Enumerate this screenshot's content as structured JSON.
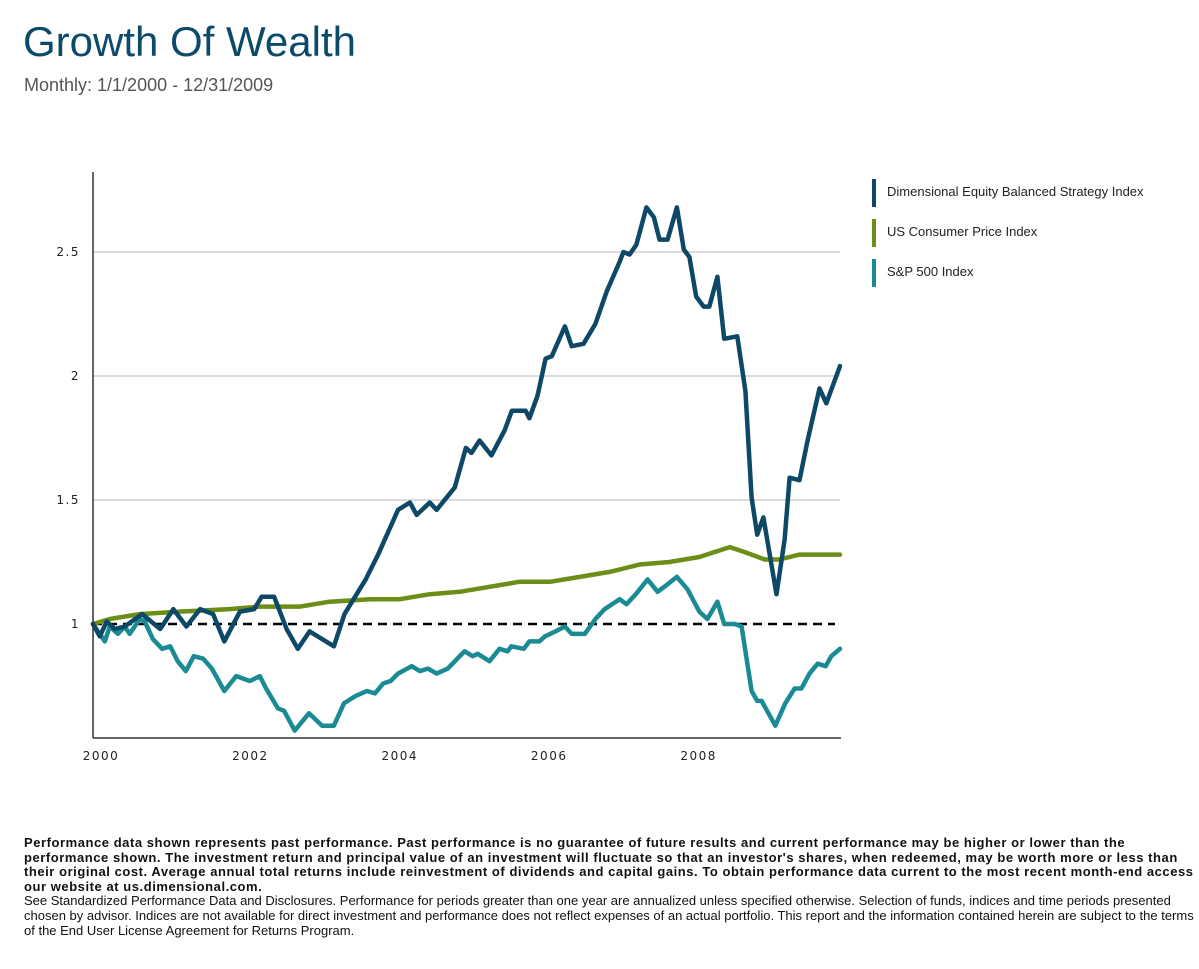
{
  "header": {
    "title": "Growth Of Wealth",
    "subtitle": "Monthly: 1/1/2000 - 12/31/2009"
  },
  "legend": [
    {
      "label": "Dimensional Equity Balanced Strategy Index",
      "color": "#0d4866"
    },
    {
      "label": "US Consumer Price Index",
      "color": "#6b8e17"
    },
    {
      "label": "S&P 500 Index",
      "color": "#1a8a94"
    }
  ],
  "chart_data": {
    "type": "line",
    "title": "Growth Of Wealth",
    "subtitle": "Monthly: 1/1/2000 - 12/31/2009",
    "xlabel": "",
    "ylabel": "",
    "x_unit": "months since Jan 2000",
    "xlim": [
      0,
      120
    ],
    "ylim": [
      0.54,
      2.8
    ],
    "x_ticks": [
      {
        "value": 0,
        "label": "2000"
      },
      {
        "value": 24,
        "label": "2002"
      },
      {
        "value": 48,
        "label": "2004"
      },
      {
        "value": 72,
        "label": "2006"
      },
      {
        "value": 96,
        "label": "2008"
      }
    ],
    "y_ticks": [
      {
        "value": 1,
        "label": "1"
      },
      {
        "value": 1.5,
        "label": "1.5"
      },
      {
        "value": 2,
        "label": "2"
      },
      {
        "value": 2.5,
        "label": "2.5"
      }
    ],
    "grid": "horizontal",
    "reference_line": {
      "value": 1,
      "style": "dashed",
      "color": "#000000"
    },
    "legend_position": "right",
    "series": [
      {
        "name": "Dimensional Equity Balanced Strategy Index",
        "color": "#0d4866",
        "points": [
          [
            0,
            1.0
          ],
          [
            1.1,
            0.95
          ],
          [
            2.2,
            1.01
          ],
          [
            3.5,
            0.98
          ],
          [
            5.1,
            0.99
          ],
          [
            7.9,
            1.04
          ],
          [
            10.8,
            0.98
          ],
          [
            12.9,
            1.06
          ],
          [
            15,
            0.99
          ],
          [
            17.2,
            1.06
          ],
          [
            19.3,
            1.04
          ],
          [
            21.1,
            0.93
          ],
          [
            23.6,
            1.05
          ],
          [
            25.9,
            1.06
          ],
          [
            27.1,
            1.11
          ],
          [
            29.1,
            1.11
          ],
          [
            31.1,
            0.98
          ],
          [
            32.9,
            0.9
          ],
          [
            34.8,
            0.97
          ],
          [
            38.7,
            0.91
          ],
          [
            40.4,
            1.04
          ],
          [
            43.8,
            1.18
          ],
          [
            45.8,
            1.28
          ],
          [
            49,
            1.46
          ],
          [
            50.9,
            1.49
          ],
          [
            52,
            1.44
          ],
          [
            54.1,
            1.49
          ],
          [
            55.2,
            1.46
          ],
          [
            58.1,
            1.55
          ],
          [
            59.9,
            1.71
          ],
          [
            60.8,
            1.69
          ],
          [
            62.1,
            1.74
          ],
          [
            64,
            1.68
          ],
          [
            66.1,
            1.78
          ],
          [
            67.3,
            1.86
          ],
          [
            68.5,
            1.86
          ],
          [
            69.5,
            1.86
          ],
          [
            70.1,
            1.83
          ],
          [
            71.4,
            1.92
          ],
          [
            72.7,
            2.07
          ],
          [
            73.7,
            2.08
          ],
          [
            75.8,
            2.2
          ],
          [
            76.9,
            2.12
          ],
          [
            78.8,
            2.13
          ],
          [
            80.7,
            2.21
          ],
          [
            82.5,
            2.34
          ],
          [
            84.6,
            2.46
          ],
          [
            85.2,
            2.5
          ],
          [
            86.2,
            2.49
          ],
          [
            87.3,
            2.53
          ],
          [
            88.9,
            2.68
          ],
          [
            90.1,
            2.64
          ],
          [
            91,
            2.55
          ],
          [
            92.3,
            2.55
          ],
          [
            93.8,
            2.68
          ],
          [
            94.9,
            2.51
          ],
          [
            95.8,
            2.48
          ],
          [
            96.9,
            2.32
          ],
          [
            98.1,
            2.28
          ],
          [
            99,
            2.28
          ],
          [
            100.3,
            2.4
          ],
          [
            101.4,
            2.15
          ],
          [
            103.5,
            2.16
          ],
          [
            104.8,
            1.94
          ],
          [
            105.8,
            1.51
          ],
          [
            106.7,
            1.36
          ],
          [
            107.7,
            1.43
          ],
          [
            109.8,
            1.12
          ],
          [
            111.1,
            1.34
          ],
          [
            111.9,
            1.59
          ],
          [
            113.5,
            1.58
          ],
          [
            114.8,
            1.74
          ],
          [
            116.7,
            1.95
          ],
          [
            117.8,
            1.89
          ],
          [
            120,
            2.04
          ]
        ]
      },
      {
        "name": "US Consumer Price Index",
        "color": "#6b8e17",
        "points": [
          [
            0,
            1.0
          ],
          [
            2.7,
            1.02
          ],
          [
            7.5,
            1.04
          ],
          [
            13.9,
            1.05
          ],
          [
            21.9,
            1.06
          ],
          [
            26.8,
            1.07
          ],
          [
            33.2,
            1.07
          ],
          [
            38.0,
            1.09
          ],
          [
            44.5,
            1.1
          ],
          [
            49.3,
            1.1
          ],
          [
            54.1,
            1.12
          ],
          [
            58.9,
            1.13
          ],
          [
            63.7,
            1.15
          ],
          [
            68.5,
            1.17
          ],
          [
            73.4,
            1.17
          ],
          [
            78.2,
            1.19
          ],
          [
            83.0,
            1.21
          ],
          [
            87.8,
            1.24
          ],
          [
            92.6,
            1.25
          ],
          [
            97.4,
            1.27
          ],
          [
            102.3,
            1.31
          ],
          [
            104.7,
            1.29
          ],
          [
            107.9,
            1.26
          ],
          [
            110.3,
            1.26
          ],
          [
            113.5,
            1.28
          ],
          [
            120,
            1.28
          ]
        ]
      },
      {
        "name": "S&P 500 Index",
        "color": "#1a8a94",
        "points": [
          [
            0,
            1.0
          ],
          [
            1.1,
            0.96
          ],
          [
            1.9,
            0.93
          ],
          [
            2.7,
            0.99
          ],
          [
            4,
            0.96
          ],
          [
            5.1,
            0.99
          ],
          [
            5.9,
            0.96
          ],
          [
            7.5,
            1.02
          ],
          [
            8.3,
            1.01
          ],
          [
            9.6,
            0.94
          ],
          [
            11.1,
            0.9
          ],
          [
            12.4,
            0.91
          ],
          [
            13.6,
            0.85
          ],
          [
            14.9,
            0.81
          ],
          [
            16.2,
            0.87
          ],
          [
            17.7,
            0.86
          ],
          [
            19.1,
            0.82
          ],
          [
            21.1,
            0.73
          ],
          [
            23,
            0.79
          ],
          [
            25.2,
            0.77
          ],
          [
            26.8,
            0.79
          ],
          [
            27.8,
            0.74
          ],
          [
            29.7,
            0.66
          ],
          [
            30.7,
            0.65
          ],
          [
            32.4,
            0.57
          ],
          [
            34.7,
            0.64
          ],
          [
            36.8,
            0.59
          ],
          [
            38.7,
            0.59
          ],
          [
            40.3,
            0.68
          ],
          [
            42.2,
            0.71
          ],
          [
            44,
            0.73
          ],
          [
            45.3,
            0.72
          ],
          [
            46.6,
            0.76
          ],
          [
            47.8,
            0.77
          ],
          [
            49,
            0.8
          ],
          [
            51.2,
            0.83
          ],
          [
            52.5,
            0.81
          ],
          [
            53.8,
            0.82
          ],
          [
            55.2,
            0.8
          ],
          [
            57,
            0.82
          ],
          [
            58.9,
            0.87
          ],
          [
            59.7,
            0.89
          ],
          [
            61,
            0.87
          ],
          [
            61.8,
            0.88
          ],
          [
            63.7,
            0.85
          ],
          [
            65.3,
            0.9
          ],
          [
            66.6,
            0.89
          ],
          [
            67.2,
            0.91
          ],
          [
            69.2,
            0.9
          ],
          [
            70.1,
            0.93
          ],
          [
            71.7,
            0.93
          ],
          [
            72.6,
            0.95
          ],
          [
            74.3,
            0.97
          ],
          [
            75.8,
            0.99
          ],
          [
            76.9,
            0.96
          ],
          [
            79,
            0.96
          ],
          [
            80.7,
            1.02
          ],
          [
            82.2,
            1.06
          ],
          [
            84.6,
            1.1
          ],
          [
            85.7,
            1.08
          ],
          [
            87.2,
            1.12
          ],
          [
            89.1,
            1.18
          ],
          [
            90.7,
            1.13
          ],
          [
            92.3,
            1.16
          ],
          [
            93.8,
            1.19
          ],
          [
            95.5,
            1.14
          ],
          [
            97.4,
            1.05
          ],
          [
            98.7,
            1.02
          ],
          [
            100.3,
            1.09
          ],
          [
            101.4,
            1.0
          ],
          [
            103.1,
            1.0
          ],
          [
            104.2,
            0.99
          ],
          [
            105.8,
            0.73
          ],
          [
            106.7,
            0.69
          ],
          [
            107.4,
            0.69
          ],
          [
            109.6,
            0.59
          ],
          [
            111.2,
            0.68
          ],
          [
            112.7,
            0.74
          ],
          [
            113.8,
            0.74
          ],
          [
            115.1,
            0.8
          ],
          [
            116.4,
            0.84
          ],
          [
            117.7,
            0.83
          ],
          [
            118.6,
            0.87
          ],
          [
            120,
            0.9
          ]
        ]
      }
    ]
  },
  "disclaimer": {
    "bold": "Performance data shown represents past performance. Past performance is no guarantee of future results and current performance may be higher or lower than the performance shown. The investment return and principal value of an investment will fluctuate so that an investor's shares, when redeemed, may be worth more or less than their original cost. Average annual total returns include reinvestment of dividends and capital gains. To obtain performance data current to the most recent month-end access our website at us.dimensional.com.",
    "normal": "See Standardized Performance Data and Disclosures. Performance for periods greater than one year are annualized unless specified otherwise. Selection of funds, indices and time periods presented chosen by advisor. Indices are not available for direct investment and performance does not reflect expenses of an actual portfolio. This report and the information contained herein are subject to the terms of the End User License Agreement for Returns Program."
  }
}
